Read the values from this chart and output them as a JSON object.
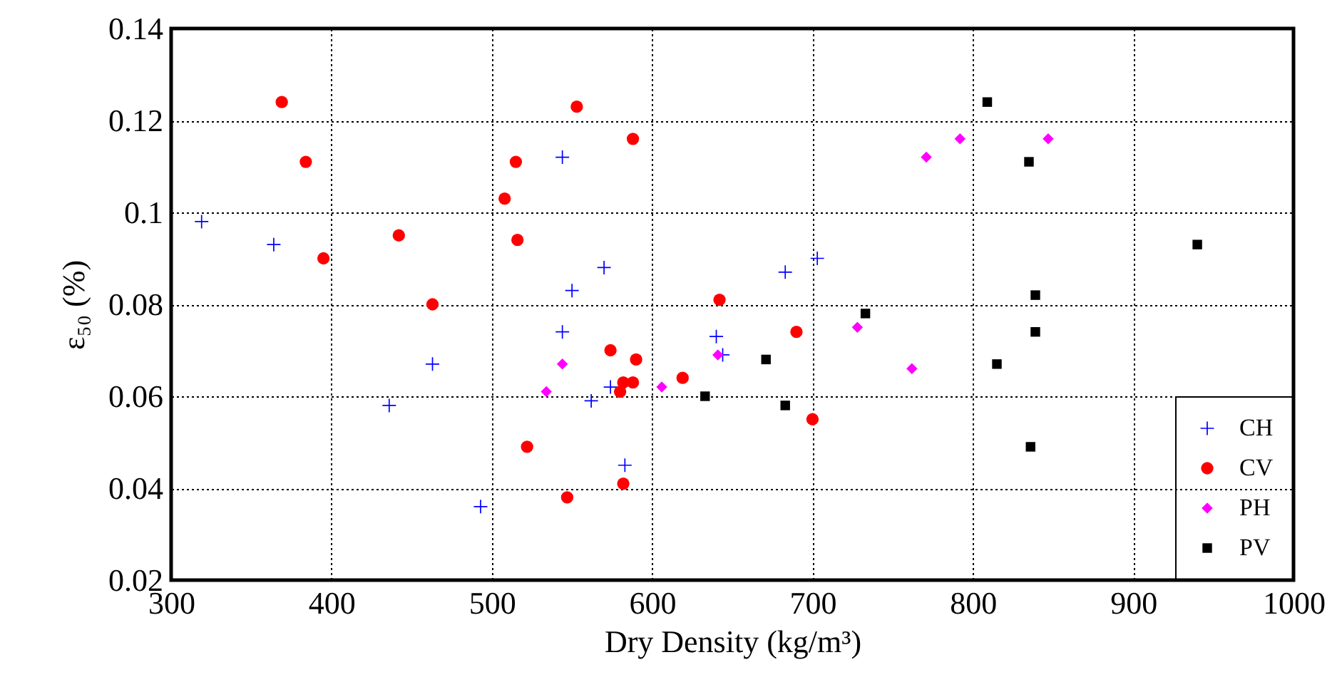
{
  "chart_data": {
    "type": "scatter",
    "xlabel": "Dry Density (kg/m³)",
    "ylabel": "ε₅₀ (%)",
    "xlim": [
      300,
      1000
    ],
    "xticks": [
      300,
      400,
      500,
      600,
      700,
      800,
      900,
      1000
    ],
    "ylim": [
      0.02,
      0.14
    ],
    "yticks": [
      0.02,
      0.04,
      0.06,
      0.08,
      0.1,
      0.12,
      0.14
    ],
    "grid": true,
    "legend": "bottom right",
    "series": [
      {
        "name": "CH",
        "color": "#0000ff",
        "marker": "cross",
        "x": [
          319,
          364,
          436,
          463,
          493,
          544,
          544,
          550,
          570,
          574,
          562,
          583,
          683,
          703,
          640,
          644
        ],
        "values": [
          0.098,
          0.093,
          0.058,
          0.067,
          0.036,
          0.112,
          0.074,
          0.083,
          0.088,
          0.062,
          0.059,
          0.045,
          0.087,
          0.09,
          0.073,
          0.069
        ]
      },
      {
        "name": "CV",
        "color": "#ff0000",
        "marker": "circle",
        "x": [
          369,
          384,
          395,
          442,
          463,
          508,
          515,
          516,
          522,
          547,
          553,
          588,
          642,
          574,
          590,
          588,
          582,
          580,
          619,
          690,
          700,
          582
        ],
        "values": [
          0.124,
          0.111,
          0.09,
          0.095,
          0.08,
          0.103,
          0.111,
          0.094,
          0.049,
          0.038,
          0.123,
          0.116,
          0.081,
          0.07,
          0.068,
          0.063,
          0.063,
          0.061,
          0.064,
          0.074,
          0.055,
          0.041
        ]
      },
      {
        "name": "PH",
        "color": "#ff00ff",
        "marker": "diamond",
        "x": [
          534,
          544,
          606,
          641,
          728,
          762,
          771,
          792,
          847
        ],
        "values": [
          0.061,
          0.067,
          0.062,
          0.069,
          0.075,
          0.066,
          0.112,
          0.116,
          0.116
        ]
      },
      {
        "name": "PV",
        "color": "#000000",
        "marker": "square",
        "x": [
          633,
          671,
          683,
          733,
          809,
          835,
          940,
          839,
          839,
          815,
          836
        ],
        "values": [
          0.06,
          0.068,
          0.058,
          0.078,
          0.124,
          0.111,
          0.093,
          0.082,
          0.074,
          0.067,
          0.049
        ]
      }
    ]
  }
}
